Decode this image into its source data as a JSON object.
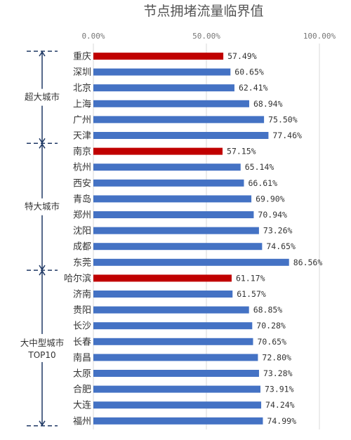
{
  "chart_data": {
    "type": "bar",
    "orientation": "horizontal",
    "title": "节点拥堵流量临界值",
    "xlim": [
      0,
      100
    ],
    "x_ticks": [
      0,
      50,
      100
    ],
    "x_tick_labels": [
      "0.00%",
      "50.00%",
      "100.00%"
    ],
    "grid": "vertical",
    "categories": [
      "重庆",
      "深圳",
      "北京",
      "上海",
      "广州",
      "天津",
      "南京",
      "杭州",
      "西安",
      "青岛",
      "郑州",
      "沈阳",
      "成都",
      "东莞",
      "哈尔滨",
      "济南",
      "贵阳",
      "长沙",
      "长春",
      "南昌",
      "太原",
      "合肥",
      "大连",
      "福州"
    ],
    "values": [
      57.49,
      60.65,
      62.41,
      68.94,
      75.5,
      77.46,
      57.15,
      65.14,
      66.61,
      69.9,
      70.94,
      73.26,
      74.65,
      86.56,
      61.17,
      61.57,
      68.85,
      70.28,
      70.65,
      72.8,
      73.28,
      73.91,
      74.24,
      74.99
    ],
    "value_labels": [
      "57.49%",
      "60.65%",
      "62.41%",
      "68.94%",
      "75.50%",
      "77.46%",
      "57.15%",
      "65.14%",
      "66.61%",
      "69.90%",
      "70.94%",
      "73.26%",
      "74.65%",
      "86.56%",
      "61.17%",
      "61.57%",
      "68.85%",
      "70.28%",
      "70.65%",
      "72.80%",
      "73.28%",
      "73.91%",
      "74.24%",
      "74.99%"
    ],
    "highlighted": [
      "重庆",
      "南京",
      "哈尔滨"
    ],
    "groups": [
      {
        "label": "超大城市",
        "sublabel": "",
        "members": [
          "重庆",
          "深圳",
          "北京",
          "上海",
          "广州",
          "天津"
        ]
      },
      {
        "label": "特大城市",
        "sublabel": "",
        "members": [
          "南京",
          "杭州",
          "西安",
          "青岛",
          "郑州",
          "沈阳",
          "成都",
          "东莞"
        ]
      },
      {
        "label": "大中型城市",
        "sublabel": "TOP10",
        "members": [
          "哈尔滨",
          "济南",
          "贵阳",
          "长沙",
          "长春",
          "南昌",
          "太原",
          "合肥",
          "大连",
          "福州"
        ]
      }
    ]
  },
  "colors": {
    "bar": "#4472C4",
    "highlight": "#C00000",
    "grid": "#D9D9D9",
    "group_bracket": "#1F3864"
  }
}
